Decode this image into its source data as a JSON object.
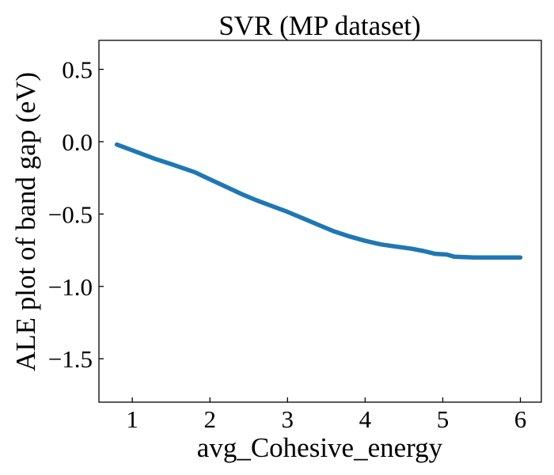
{
  "chart_data": {
    "type": "line",
    "title": "SVR (MP dataset)",
    "xlabel": "avg_Cohesive_energy",
    "ylabel": "ALE plot of band gap (eV)",
    "xlim": [
      0.57,
      6.27
    ],
    "ylim": [
      -1.8,
      0.7
    ],
    "xticks": [
      1,
      2,
      3,
      4,
      5,
      6
    ],
    "xtick_labels": [
      "1",
      "2",
      "3",
      "4",
      "5",
      "6"
    ],
    "yticks": [
      0.5,
      0.0,
      -0.5,
      -1.0,
      -1.5
    ],
    "ytick_labels": [
      "0.5",
      "0.0",
      "−0.5",
      "−1.0",
      "−1.5"
    ],
    "grid": false,
    "legend": false,
    "series": [
      {
        "color": "#1f77b4",
        "x": [
          0.8,
          0.95,
          1.1,
          1.3,
          1.5,
          1.8,
          2.0,
          2.2,
          2.4,
          2.6,
          2.8,
          3.0,
          3.2,
          3.4,
          3.6,
          3.8,
          4.0,
          4.2,
          4.4,
          4.6,
          4.75,
          4.9,
          5.05,
          5.15,
          5.4,
          5.7,
          6.0
        ],
        "y": [
          -0.02,
          -0.05,
          -0.08,
          -0.12,
          -0.155,
          -0.21,
          -0.26,
          -0.31,
          -0.36,
          -0.405,
          -0.445,
          -0.485,
          -0.53,
          -0.575,
          -0.62,
          -0.655,
          -0.685,
          -0.71,
          -0.725,
          -0.74,
          -0.755,
          -0.775,
          -0.78,
          -0.795,
          -0.8,
          -0.8,
          -0.8
        ]
      }
    ]
  }
}
